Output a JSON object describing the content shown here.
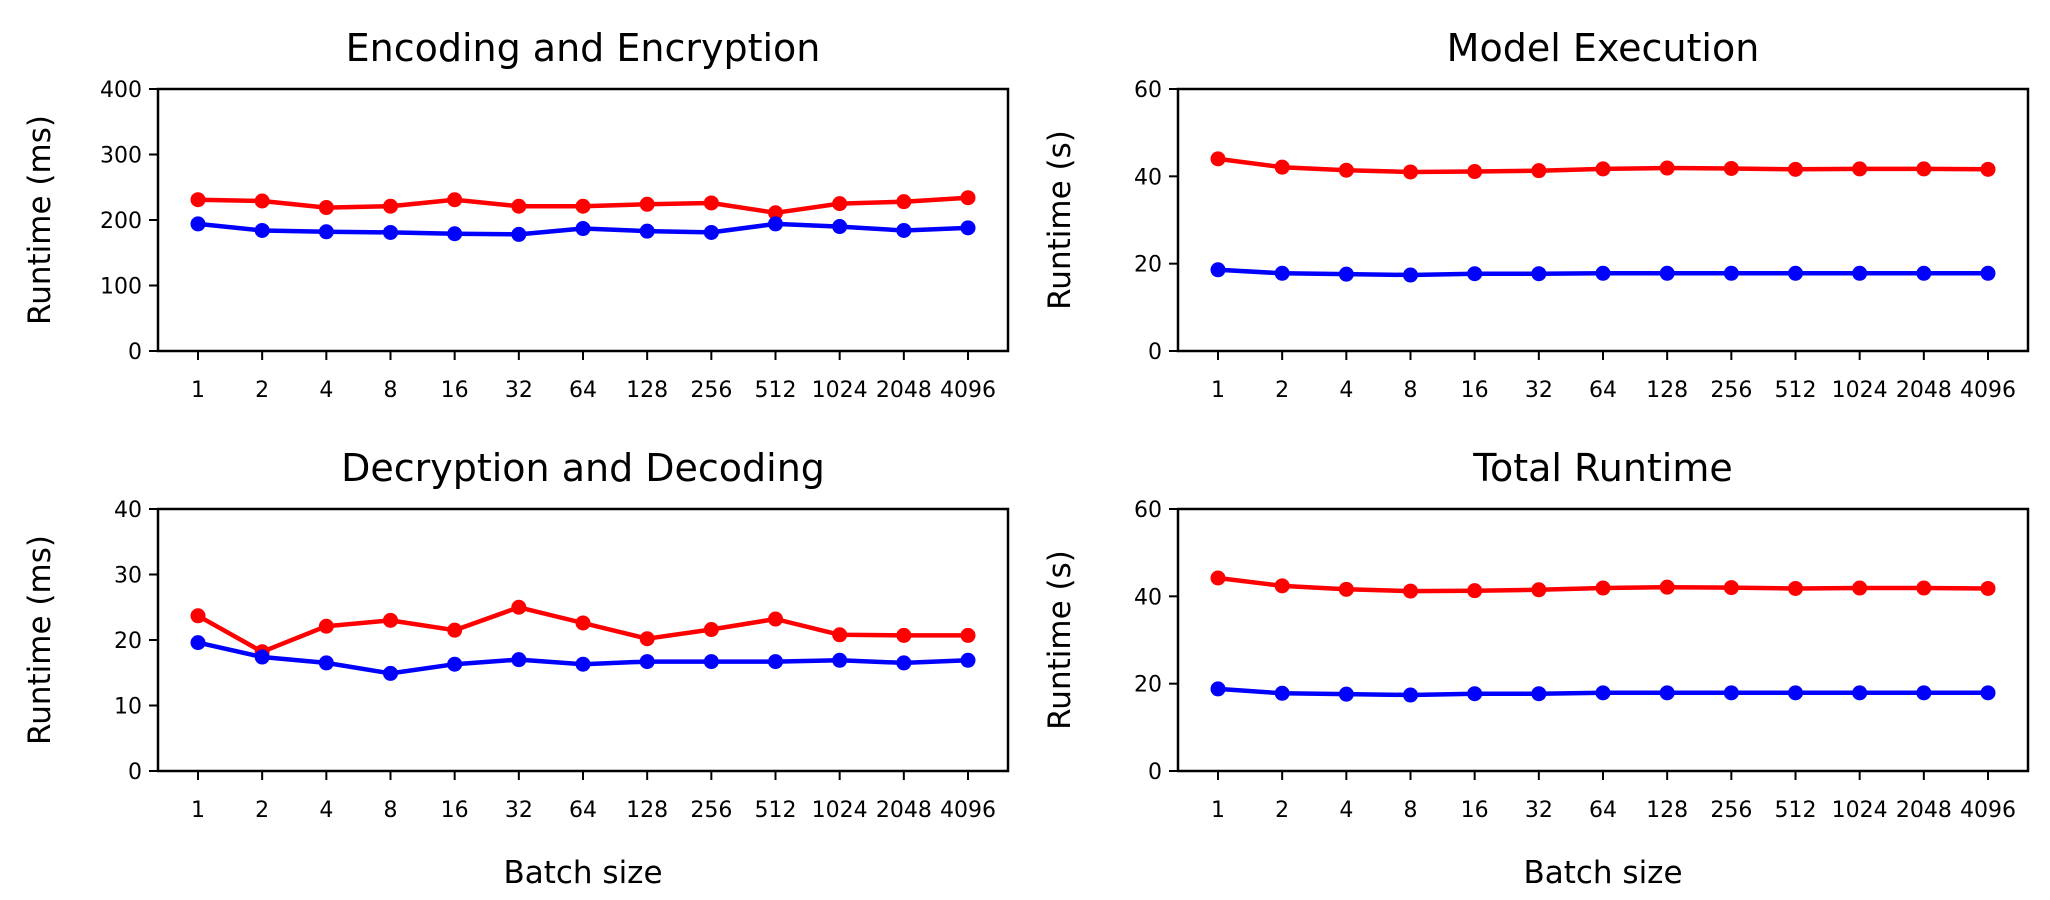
{
  "colors": {
    "red_series": "#ff0000",
    "blue_series": "#0000ff"
  },
  "chart_data": [
    {
      "type": "line",
      "title": "Encoding and Encryption",
      "xlabel": "",
      "ylabel": "Runtime (ms)",
      "categories": [
        "1",
        "2",
        "4",
        "8",
        "16",
        "32",
        "64",
        "128",
        "256",
        "512",
        "1024",
        "2048",
        "4096"
      ],
      "ylim": [
        0,
        400
      ],
      "yticks": [
        0,
        100,
        200,
        300,
        400
      ],
      "series": [
        {
          "name": "red",
          "color": "#ff0000",
          "values": [
            231,
            229,
            219,
            221,
            231,
            221,
            221,
            224,
            226,
            211,
            225,
            228,
            234
          ]
        },
        {
          "name": "blue",
          "color": "#0000ff",
          "values": [
            194,
            184,
            182,
            181,
            179,
            178,
            187,
            183,
            181,
            194,
            190,
            184,
            188
          ]
        }
      ]
    },
    {
      "type": "line",
      "title": "Model Execution",
      "xlabel": "",
      "ylabel": "Runtime (s)",
      "categories": [
        "1",
        "2",
        "4",
        "8",
        "16",
        "32",
        "64",
        "128",
        "256",
        "512",
        "1024",
        "2048",
        "4096"
      ],
      "ylim": [
        0,
        60
      ],
      "yticks": [
        0,
        20,
        40,
        60
      ],
      "series": [
        {
          "name": "red",
          "color": "#ff0000",
          "values": [
            44.0,
            42.1,
            41.4,
            41.0,
            41.1,
            41.3,
            41.7,
            41.9,
            41.8,
            41.6,
            41.7,
            41.7,
            41.6
          ]
        },
        {
          "name": "blue",
          "color": "#0000ff",
          "values": [
            18.6,
            17.8,
            17.6,
            17.4,
            17.7,
            17.7,
            17.8,
            17.8,
            17.8,
            17.8,
            17.8,
            17.8,
            17.8
          ]
        }
      ]
    },
    {
      "type": "line",
      "title": "Decryption and Decoding",
      "xlabel": "Batch size",
      "ylabel": "Runtime (ms)",
      "categories": [
        "1",
        "2",
        "4",
        "8",
        "16",
        "32",
        "64",
        "128",
        "256",
        "512",
        "1024",
        "2048",
        "4096"
      ],
      "ylim": [
        0,
        40
      ],
      "yticks": [
        0,
        10,
        20,
        30,
        40
      ],
      "series": [
        {
          "name": "red",
          "color": "#ff0000",
          "values": [
            23.7,
            18.2,
            22.1,
            23.0,
            21.5,
            25.0,
            22.6,
            20.2,
            21.6,
            23.2,
            20.8,
            20.7,
            20.7
          ]
        },
        {
          "name": "blue",
          "color": "#0000ff",
          "values": [
            19.6,
            17.4,
            16.5,
            14.9,
            16.3,
            17.0,
            16.3,
            16.7,
            16.7,
            16.7,
            16.9,
            16.5,
            16.9
          ]
        }
      ]
    },
    {
      "type": "line",
      "title": "Total Runtime",
      "xlabel": "Batch size",
      "ylabel": "Runtime (s)",
      "categories": [
        "1",
        "2",
        "4",
        "8",
        "16",
        "32",
        "64",
        "128",
        "256",
        "512",
        "1024",
        "2048",
        "4096"
      ],
      "ylim": [
        0,
        60
      ],
      "yticks": [
        0,
        20,
        40,
        60
      ],
      "series": [
        {
          "name": "red",
          "color": "#ff0000",
          "values": [
            44.2,
            42.4,
            41.6,
            41.2,
            41.3,
            41.5,
            41.9,
            42.1,
            42.0,
            41.8,
            41.9,
            41.9,
            41.8
          ]
        },
        {
          "name": "blue",
          "color": "#0000ff",
          "values": [
            18.8,
            17.8,
            17.6,
            17.4,
            17.7,
            17.7,
            17.9,
            17.9,
            17.9,
            17.9,
            17.9,
            17.9,
            17.9
          ]
        }
      ]
    }
  ]
}
